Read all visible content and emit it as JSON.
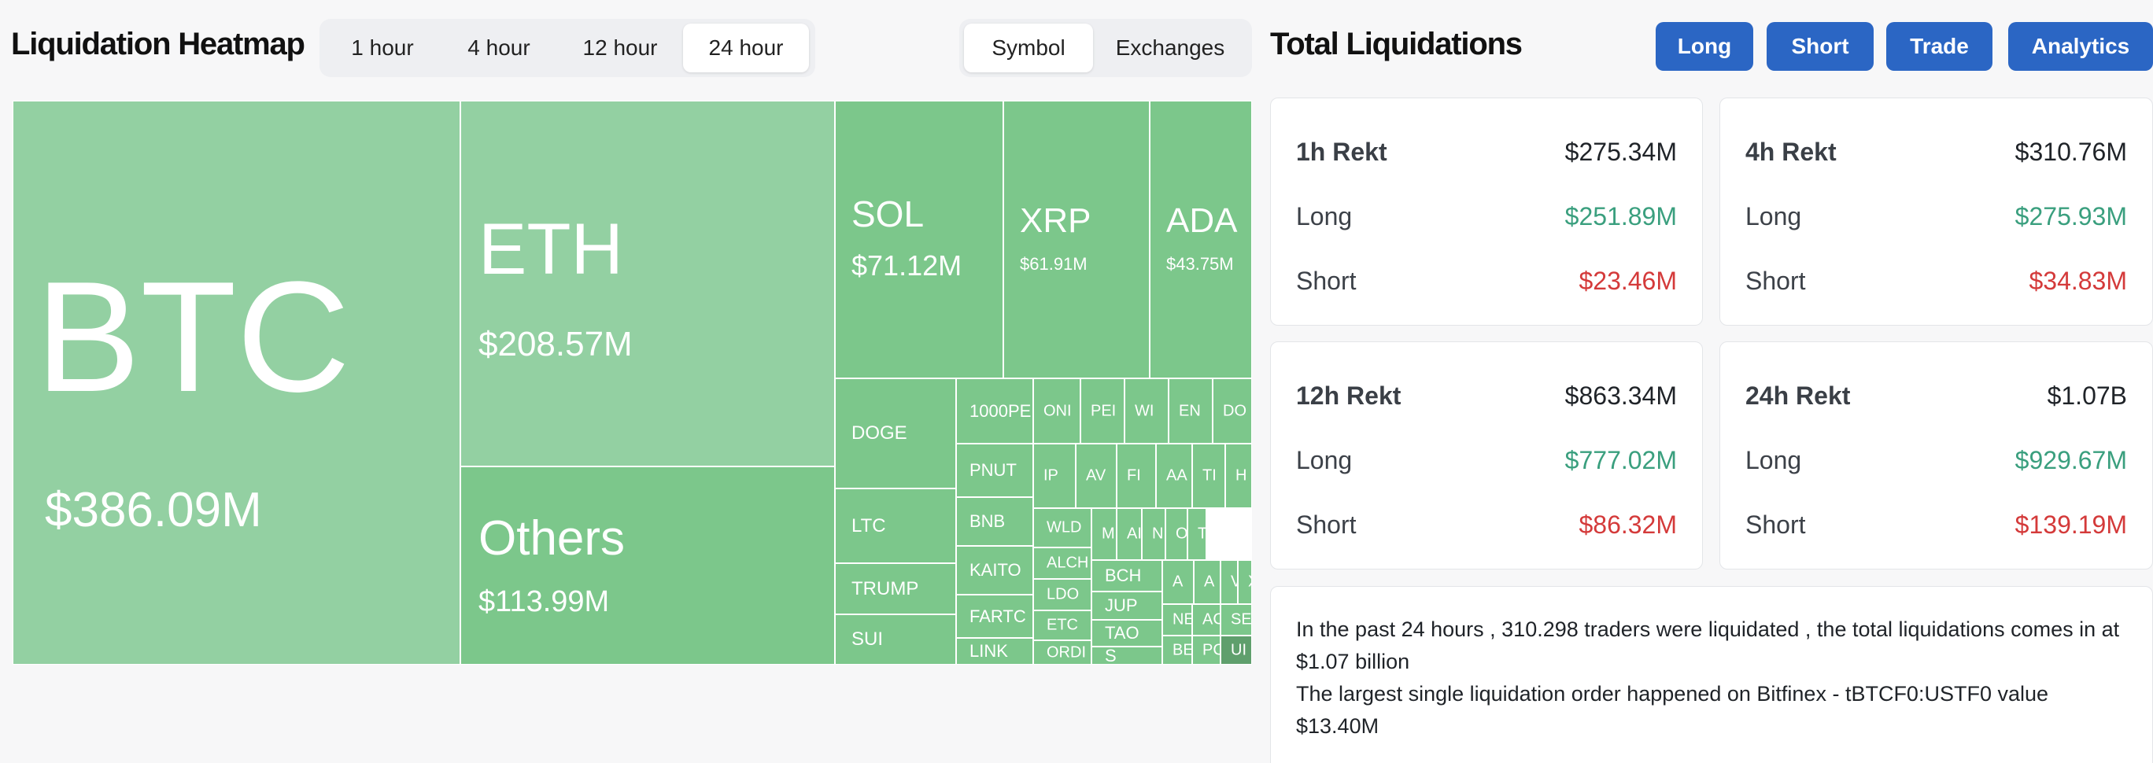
{
  "header": {
    "title": "Liquidation Heatmap",
    "time_tabs": [
      {
        "label": "1 hour",
        "active": false
      },
      {
        "label": "4 hour",
        "active": false
      },
      {
        "label": "12 hour",
        "active": false
      },
      {
        "label": "24 hour",
        "active": true
      }
    ],
    "view_tabs": [
      {
        "label": "Symbol",
        "active": true
      },
      {
        "label": "Exchanges",
        "active": false
      }
    ]
  },
  "heatmap": {
    "colors": {
      "light": "#93d0a2",
      "medium": "#7cc78b",
      "dark": "#5f9f6d",
      "border": "#ffffff"
    },
    "big_tiles": [
      {
        "symbol": "BTC",
        "value": "$386.09M"
      },
      {
        "symbol": "ETH",
        "value": "$208.57M"
      },
      {
        "symbol": "Others",
        "value": "$113.99M"
      },
      {
        "symbol": "SOL",
        "value": "$71.12M"
      },
      {
        "symbol": "XRP",
        "value": "$61.91M"
      },
      {
        "symbol": "ADA",
        "value": "$43.75M"
      }
    ],
    "small_tiles": [
      "DOGE",
      "LTC",
      "TRUMP",
      "SUI",
      "1000PE",
      "PNUT",
      "BNB",
      "KAITO",
      "FARTC",
      "LINK",
      "ONI",
      "PEI",
      "WI",
      "EN",
      "DO",
      "IP",
      "AV",
      "FI",
      "AA",
      "TI",
      "H",
      "WLD",
      "M",
      "AI",
      "N",
      "O",
      "T(",
      "ALCH",
      "LDO",
      "ETC",
      "ORDI",
      "BCH",
      "JUP",
      "TAO",
      "S",
      "A",
      "A",
      "V",
      "X",
      "NE",
      "AC",
      "SE",
      "BE",
      "PC",
      "UI"
    ]
  },
  "totals": {
    "title": "Total Liquidations",
    "buttons": [
      "Long",
      "Short",
      "Trade",
      "Analytics"
    ],
    "cards": [
      {
        "label": "1h Rekt",
        "total": "$275.34M",
        "long_label": "Long",
        "long": "$251.89M",
        "short_label": "Short",
        "short": "$23.46M"
      },
      {
        "label": "4h Rekt",
        "total": "$310.76M",
        "long_label": "Long",
        "long": "$275.93M",
        "short_label": "Short",
        "short": "$34.83M"
      },
      {
        "label": "12h Rekt",
        "total": "$863.34M",
        "long_label": "Long",
        "long": "$777.02M",
        "short_label": "Short",
        "short": "$86.32M"
      },
      {
        "label": "24h Rekt",
        "total": "$1.07B",
        "long_label": "Long",
        "long": "$929.67M",
        "short_label": "Short",
        "short": "$139.19M"
      }
    ],
    "colors": {
      "long": "#3a9f7e",
      "short": "#d43a3a",
      "button": "#2b66c4"
    }
  },
  "summary": {
    "line1": "In the past 24 hours , 310.298 traders were liquidated , the total liquidations comes in at $1.07 billion",
    "line2": "The largest single liquidation order happened on Bitfinex - tBTCF0:USTF0 value $13.40M"
  }
}
